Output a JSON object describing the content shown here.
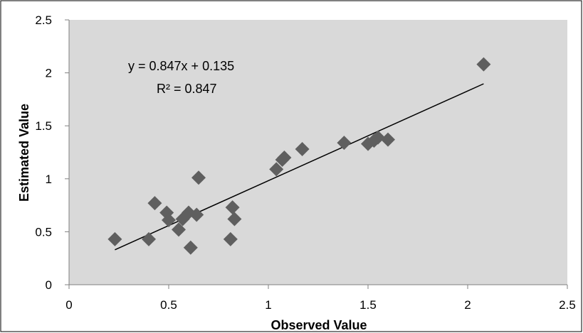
{
  "chart_data": {
    "type": "scatter",
    "title": "",
    "xlabel": "Observed Value",
    "ylabel": "Estimated Value",
    "xlim": [
      0,
      2.5
    ],
    "ylim": [
      0,
      2.5
    ],
    "x_ticks": [
      "0",
      "0.5",
      "1",
      "1.5",
      "2",
      "2.5"
    ],
    "y_ticks": [
      "0",
      "0.5",
      "1",
      "1.5",
      "2",
      "2.5"
    ],
    "grid": false,
    "legend": "none",
    "series": [
      {
        "marker": "diamond",
        "color": "#5f5f5f",
        "points": [
          [
            0.23,
            0.43
          ],
          [
            0.4,
            0.43
          ],
          [
            0.43,
            0.77
          ],
          [
            0.49,
            0.68
          ],
          [
            0.5,
            0.61
          ],
          [
            0.55,
            0.52
          ],
          [
            0.57,
            0.62
          ],
          [
            0.6,
            0.68
          ],
          [
            0.61,
            0.35
          ],
          [
            0.64,
            0.66
          ],
          [
            0.65,
            1.01
          ],
          [
            0.81,
            0.43
          ],
          [
            0.82,
            0.73
          ],
          [
            0.83,
            0.62
          ],
          [
            1.04,
            1.09
          ],
          [
            1.07,
            1.18
          ],
          [
            1.08,
            1.2
          ],
          [
            1.17,
            1.28
          ],
          [
            1.38,
            1.34
          ],
          [
            1.5,
            1.33
          ],
          [
            1.53,
            1.36
          ],
          [
            1.55,
            1.39
          ],
          [
            1.6,
            1.37
          ],
          [
            2.08,
            2.08
          ]
        ]
      }
    ],
    "trendline": {
      "type": "linear",
      "slope": 0.847,
      "intercept": 0.135,
      "x_range": [
        0.23,
        2.08
      ],
      "color": "#000000"
    },
    "annotations": {
      "equation": "y = 0.847x + 0.135",
      "r_squared": "R² = 0.847"
    }
  },
  "colors": {
    "plot_area": "#d9d9d9",
    "marker": "#5f5f5f",
    "trendline": "#000000",
    "axis": "#808080",
    "border": "#000000"
  }
}
